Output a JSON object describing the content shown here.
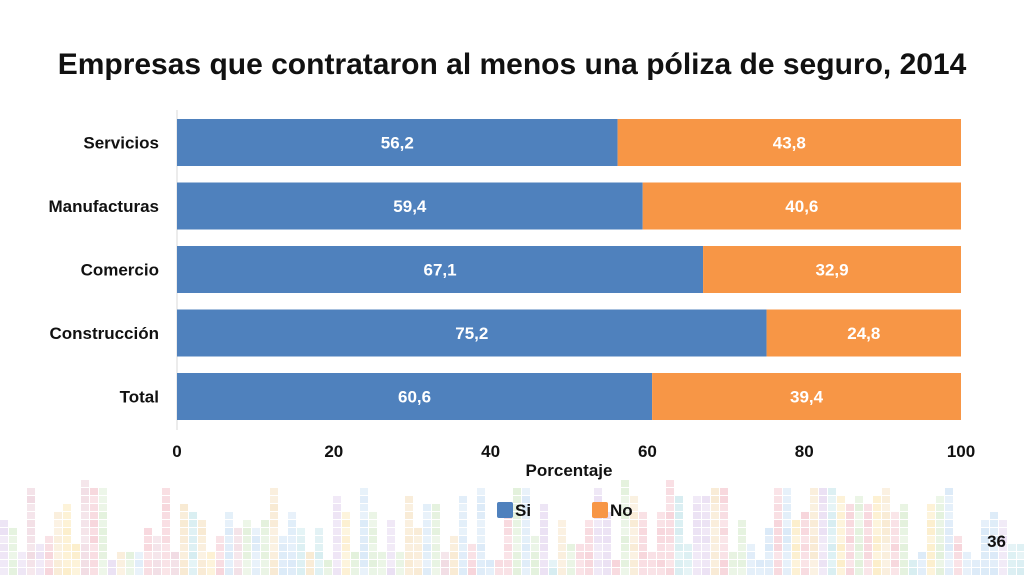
{
  "slide": {
    "number": "36"
  },
  "chart_data": {
    "type": "bar",
    "orientation": "horizontal",
    "stacked": true,
    "title": "Empresas que contrataron al menos una póliza de seguro, 2014",
    "categories": [
      "Servicios",
      "Manufacturas",
      "Comercio",
      "Construcción",
      "Total"
    ],
    "series": [
      {
        "name": "Si",
        "values": [
          56.2,
          59.4,
          67.1,
          75.2,
          60.6
        ],
        "labels": [
          "56,2",
          "59,4",
          "67,1",
          "75,2",
          "60,6"
        ],
        "color": "#4f81bd"
      },
      {
        "name": "No",
        "values": [
          43.8,
          40.6,
          32.9,
          24.8,
          39.4
        ],
        "labels": [
          "43,8",
          "40,6",
          "32,9",
          "24,8",
          "39,4"
        ],
        "color": "#f79646"
      }
    ],
    "xlabel": "Porcentaje",
    "ylabel": "",
    "xlim": [
      0,
      100
    ],
    "xticks": [
      "0",
      "20",
      "40",
      "60",
      "80",
      "100"
    ],
    "legend_position": "bottom",
    "grid": false
  }
}
